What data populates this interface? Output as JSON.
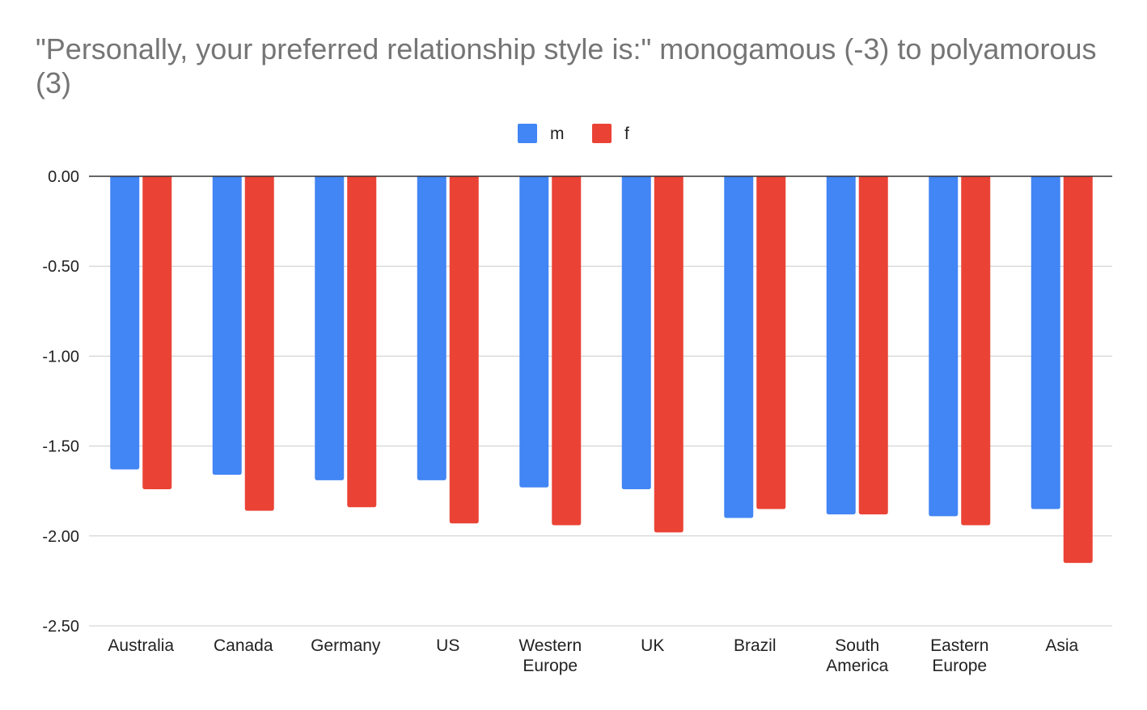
{
  "chart_data": {
    "type": "bar",
    "title": "\"Personally, your preferred relationship style is:\" monogamous (-3) to polyamorous (3)",
    "xlabel": "",
    "ylabel": "",
    "categories": [
      "Australia",
      "Canada",
      "Germany",
      "US",
      "Western Europe",
      "UK",
      "Brazil",
      "South America",
      "Eastern Europe",
      "Asia"
    ],
    "series": [
      {
        "name": "m",
        "color": "#4285f4",
        "values": [
          -1.63,
          -1.66,
          -1.69,
          -1.69,
          -1.73,
          -1.74,
          -1.9,
          -1.88,
          -1.89,
          -1.85
        ]
      },
      {
        "name": "f",
        "color": "#ea4335",
        "values": [
          -1.74,
          -1.86,
          -1.84,
          -1.93,
          -1.94,
          -1.98,
          -1.85,
          -1.88,
          -1.94,
          -2.15
        ]
      }
    ],
    "ylim": [
      -2.5,
      0
    ],
    "yticks": [
      "0.00",
      "-0.50",
      "-1.00",
      "-1.50",
      "-2.00",
      "-2.50"
    ],
    "grid": true,
    "legend_position": "top"
  }
}
